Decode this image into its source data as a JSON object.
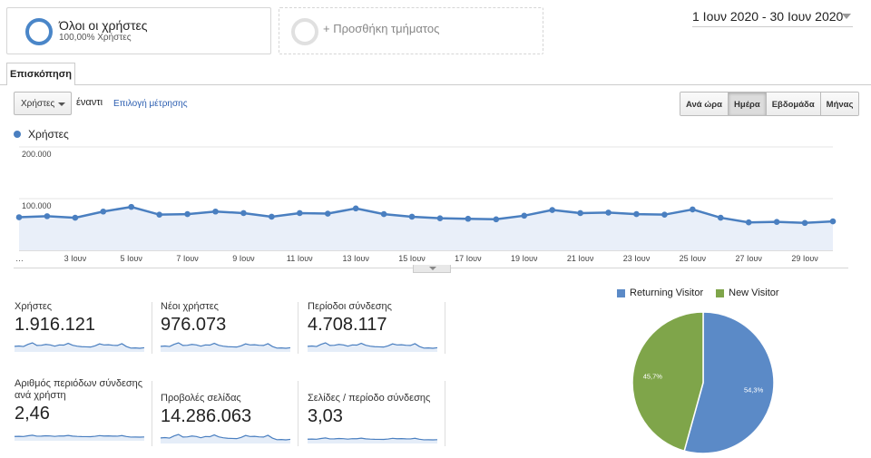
{
  "segments": {
    "active": {
      "title": "Όλοι οι χρήστες",
      "subtitle": "100,00% Χρήστες"
    },
    "add_label": "+ Προσθήκη τμήματος"
  },
  "date_range": "1 Ιουν 2020 - 30 Ιουν 2020",
  "tab": "Επισκόπηση",
  "controls": {
    "metric_select": "Χρήστες",
    "vs_label": "έναντι",
    "choose_metric": "Επιλογή μέτρησης",
    "time_buttons": [
      "Ανά ώρα",
      "Ημέρα",
      "Εβδομάδα",
      "Μήνας"
    ],
    "active_time": "Ημέρα"
  },
  "colors": {
    "accent": "#4a7fc0",
    "returning": "#5b8ac7",
    "new": "#7fa54a"
  },
  "chart_data": {
    "type": "area",
    "series": [
      {
        "name": "Χρήστες",
        "values": [
          64000,
          66000,
          63000,
          75000,
          84000,
          69000,
          70000,
          75000,
          72000,
          65000,
          72000,
          71000,
          81000,
          70000,
          65000,
          62000,
          61000,
          60000,
          67000,
          78000,
          72000,
          73000,
          70000,
          69000,
          79000,
          63000,
          54000,
          55000,
          53000,
          56000
        ]
      }
    ],
    "x": [
      1,
      2,
      3,
      4,
      5,
      6,
      7,
      8,
      9,
      10,
      11,
      12,
      13,
      14,
      15,
      16,
      17,
      18,
      19,
      20,
      21,
      22,
      23,
      24,
      25,
      26,
      27,
      28,
      29,
      30
    ],
    "x_tick_labels": [
      "…",
      "3 Ιουν",
      "5 Ιουν",
      "7 Ιουν",
      "9 Ιουν",
      "11 Ιουν",
      "13 Ιουν",
      "15 Ιουν",
      "17 Ιουν",
      "19 Ιουν",
      "21 Ιουν",
      "23 Ιουν",
      "25 Ιουν",
      "27 Ιουν",
      "29 Ιουν"
    ],
    "y_tick_labels": [
      "200.000",
      "100.000"
    ],
    "ylim": [
      0,
      100000
    ],
    "grid": true
  },
  "scorecards": [
    {
      "label": "Χρήστες",
      "value": "1.916.121"
    },
    {
      "label": "Νέοι χρήστες",
      "value": "976.073"
    },
    {
      "label": "Περίοδοι σύνδεσης",
      "value": "4.708.117"
    },
    {
      "label": "Αριθμός περιόδων σύνδεσης ανά χρήστη",
      "value": "2,46"
    },
    {
      "label": "Προβολές σελίδας",
      "value": "14.286.063"
    },
    {
      "label": "Σελίδες / περίοδο σύνδεσης",
      "value": "3,03"
    }
  ],
  "pie": {
    "slices": [
      {
        "name": "Returning Visitor",
        "value": 54.3,
        "label": "54,3%"
      },
      {
        "name": "New Visitor",
        "value": 45.7,
        "label": "45,7%"
      }
    ]
  }
}
